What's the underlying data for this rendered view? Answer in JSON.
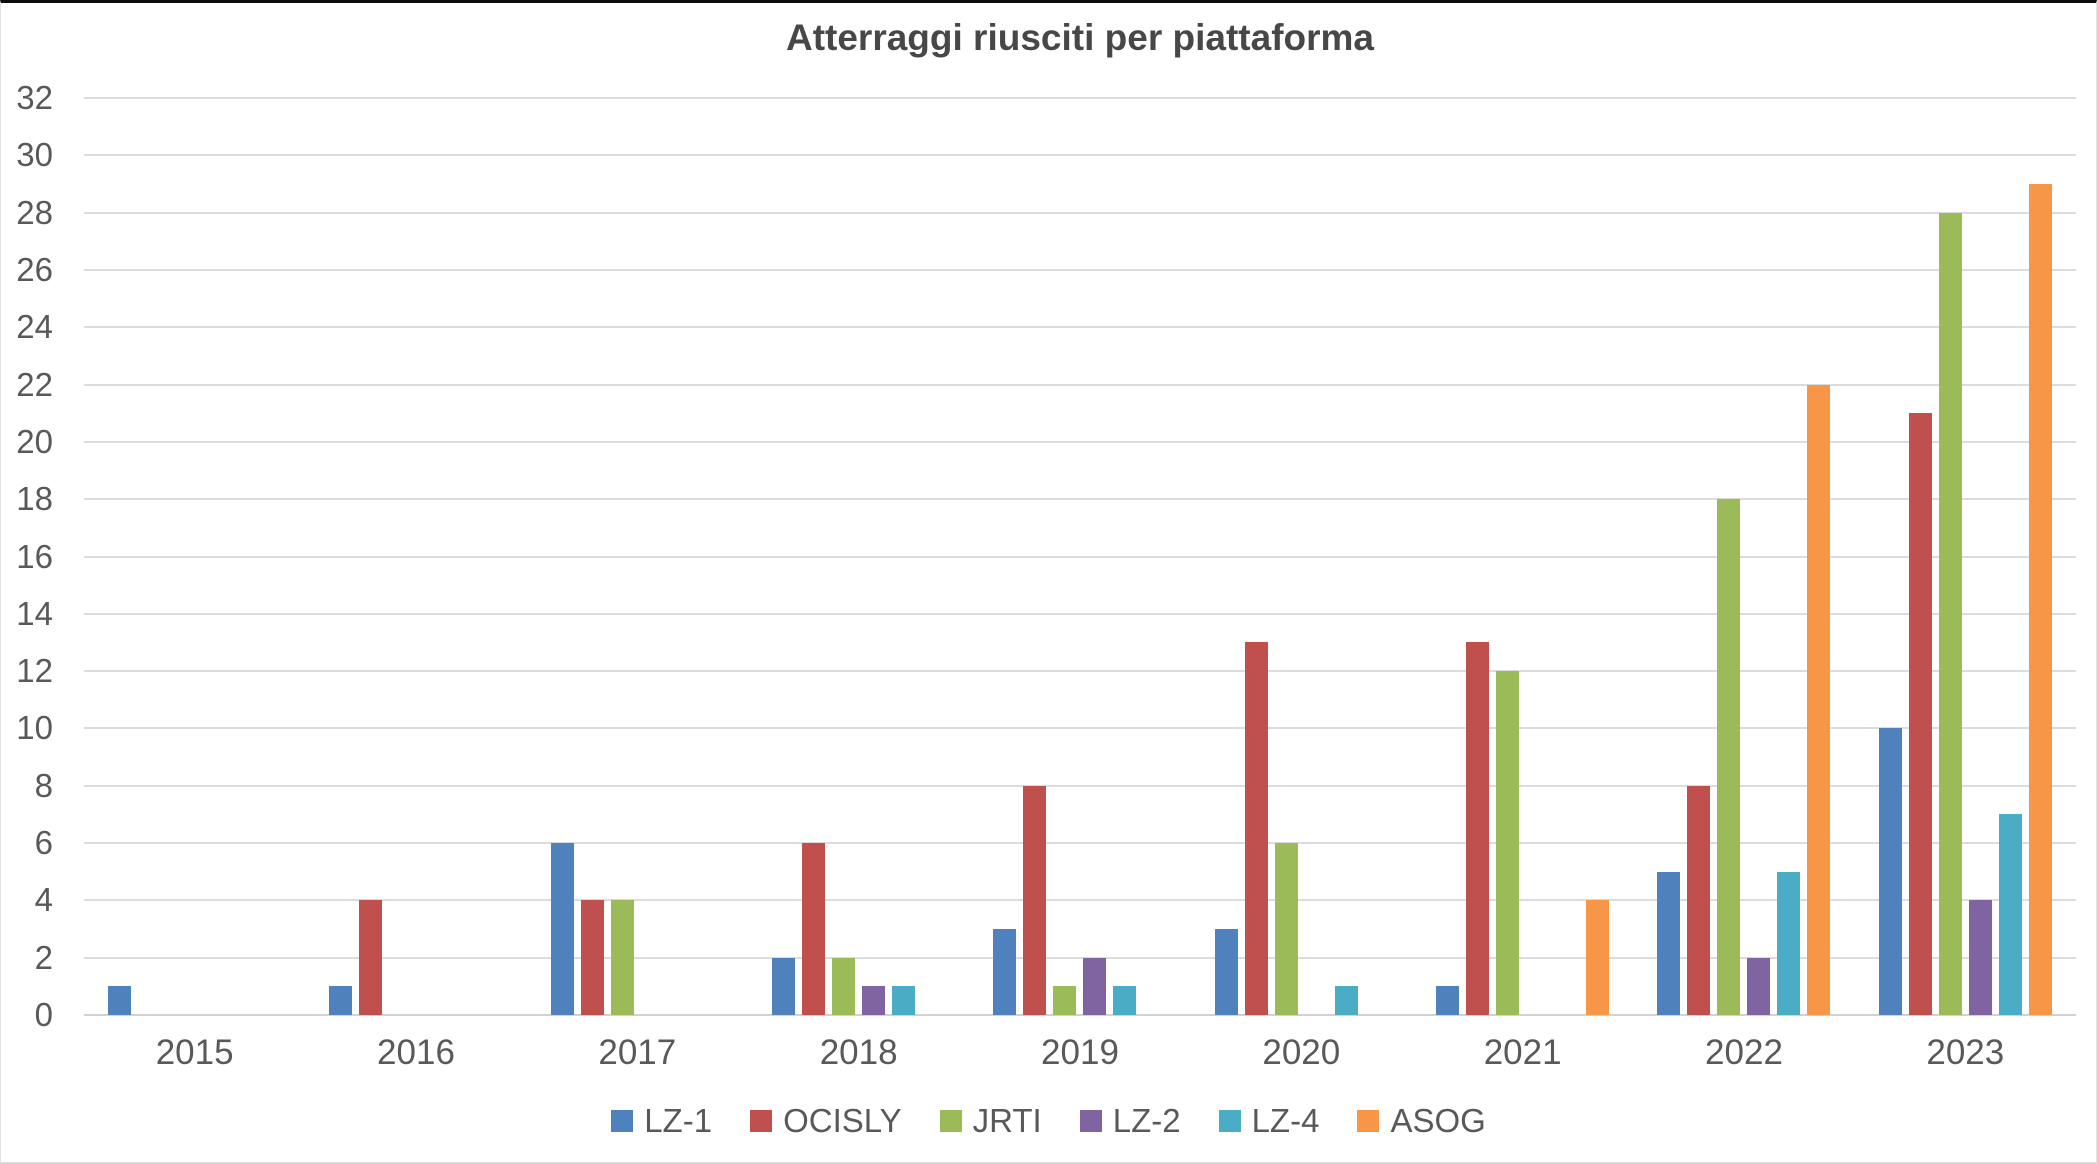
{
  "title": "Atterraggi riusciti per piattaforma",
  "colors": {
    "background": "#FFFFFF",
    "grid": "#DCDCDC",
    "axis_text": "#595959",
    "title_text": "#474747"
  },
  "chart_data": {
    "type": "bar",
    "title": "Atterraggi riusciti per piattaforma",
    "xlabel": "",
    "ylabel": "",
    "categories": [
      "2015",
      "2016",
      "2017",
      "2018",
      "2019",
      "2020",
      "2021",
      "2022",
      "2023"
    ],
    "series": [
      {
        "name": "LZ-1",
        "color": "#4F81BD",
        "values": [
          1,
          1,
          6,
          2,
          3,
          3,
          1,
          5,
          10
        ]
      },
      {
        "name": "OCISLY",
        "color": "#C0504D",
        "values": [
          0,
          4,
          4,
          6,
          8,
          13,
          13,
          8,
          21
        ]
      },
      {
        "name": "JRTI",
        "color": "#9BBB59",
        "values": [
          0,
          0,
          4,
          2,
          1,
          6,
          12,
          18,
          28
        ]
      },
      {
        "name": "LZ-2",
        "color": "#8064A2",
        "values": [
          0,
          0,
          0,
          1,
          2,
          0,
          0,
          2,
          4
        ]
      },
      {
        "name": "LZ-4",
        "color": "#4BACC6",
        "values": [
          0,
          0,
          0,
          1,
          1,
          1,
          0,
          5,
          7
        ]
      },
      {
        "name": "ASOG",
        "color": "#F79646",
        "values": [
          0,
          0,
          0,
          0,
          0,
          0,
          4,
          22,
          29
        ]
      }
    ],
    "ylim": [
      0,
      32
    ],
    "yticks": [
      0,
      2,
      4,
      6,
      8,
      10,
      12,
      14,
      16,
      18,
      20,
      22,
      24,
      26,
      28,
      30,
      32
    ],
    "grid": true,
    "legend_position": "bottom"
  }
}
